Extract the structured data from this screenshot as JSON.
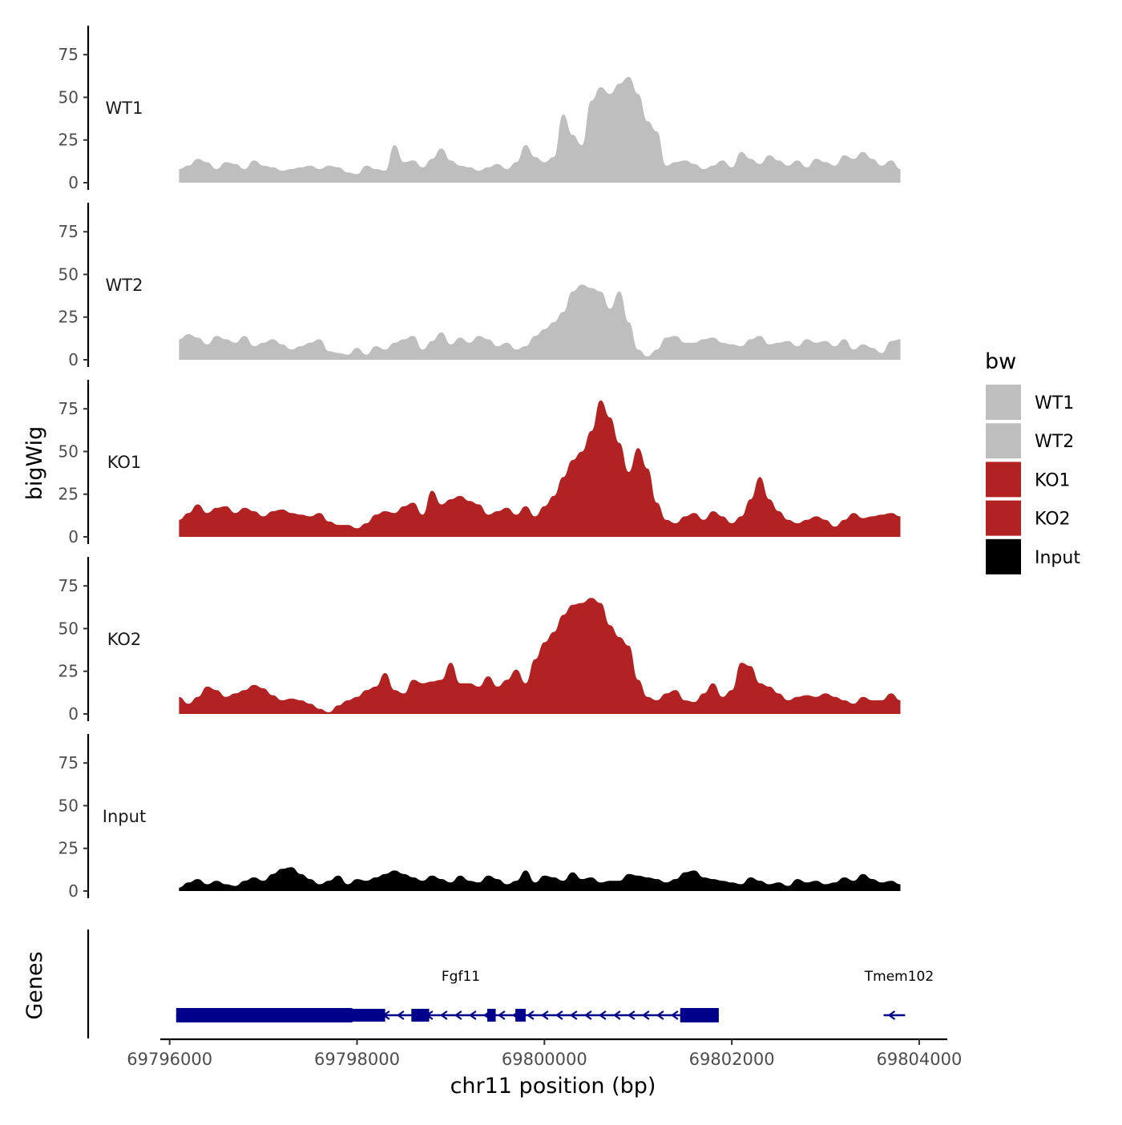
{
  "chart_data": {
    "type": "area",
    "title": "",
    "ylabel": "bigWig",
    "genes_label": "Genes",
    "xlabel": "chr11 position (bp)",
    "xlim": [
      69795900,
      69804300
    ],
    "ylim": [
      0,
      92
    ],
    "y_ticks": [
      0,
      25,
      50,
      75
    ],
    "x_ticks": [
      69796000,
      69798000,
      69800000,
      69802000,
      69804000
    ],
    "x_tick_labels": [
      "69796000",
      "69798000",
      "69800000",
      "69802000",
      "69804000"
    ],
    "legend": {
      "title": "bw",
      "entries": [
        {
          "label": "WT1",
          "color": "#bebebe"
        },
        {
          "label": "WT2",
          "color": "#bebebe"
        },
        {
          "label": "KO1",
          "color": "#b22222"
        },
        {
          "label": "KO2",
          "color": "#b22222"
        },
        {
          "label": "Input",
          "color": "#000000"
        }
      ]
    },
    "x": [
      69796100,
      69796200,
      69796300,
      69796400,
      69796500,
      69796600,
      69796700,
      69796800,
      69796900,
      69797000,
      69797100,
      69797200,
      69797300,
      69797400,
      69797500,
      69797600,
      69797700,
      69797800,
      69797900,
      69798000,
      69798100,
      69798200,
      69798300,
      69798400,
      69798500,
      69798600,
      69798700,
      69798800,
      69798900,
      69799000,
      69799100,
      69799200,
      69799300,
      69799400,
      69799500,
      69799600,
      69799700,
      69799800,
      69799900,
      69800000,
      69800100,
      69800200,
      69800300,
      69800400,
      69800500,
      69800600,
      69800700,
      69800800,
      69800900,
      69801000,
      69801100,
      69801200,
      69801300,
      69801400,
      69801500,
      69801600,
      69801700,
      69801800,
      69801900,
      69802000,
      69802100,
      69802200,
      69802300,
      69802400,
      69802500,
      69802600,
      69802700,
      69802800,
      69802900,
      69803000,
      69803100,
      69803200,
      69803300,
      69803400,
      69803500,
      69803600,
      69803700,
      69803800
    ],
    "series": [
      {
        "name": "WT1",
        "color": "#bebebe",
        "values": [
          8,
          10,
          14,
          12,
          8,
          12,
          11,
          8,
          13,
          10,
          9,
          7,
          8,
          9,
          10,
          8,
          10,
          9,
          6,
          5,
          10,
          8,
          7,
          22,
          12,
          13,
          9,
          14,
          20,
          13,
          10,
          9,
          7,
          9,
          11,
          8,
          12,
          22,
          15,
          12,
          15,
          40,
          28,
          22,
          48,
          56,
          52,
          58,
          62,
          52,
          36,
          30,
          10,
          12,
          13,
          11,
          8,
          10,
          13,
          9,
          18,
          14,
          11,
          16,
          13,
          10,
          13,
          9,
          14,
          12,
          10,
          16,
          14,
          18,
          14,
          10,
          13,
          8
        ]
      },
      {
        "name": "WT2",
        "color": "#bebebe",
        "values": [
          12,
          15,
          13,
          9,
          14,
          12,
          10,
          14,
          8,
          10,
          12,
          9,
          6,
          8,
          10,
          12,
          5,
          4,
          3,
          7,
          3,
          8,
          6,
          10,
          12,
          14,
          6,
          11,
          16,
          9,
          13,
          10,
          14,
          12,
          8,
          10,
          6,
          8,
          14,
          18,
          22,
          28,
          40,
          44,
          42,
          40,
          30,
          40,
          22,
          6,
          2,
          6,
          13,
          14,
          10,
          10,
          12,
          13,
          10,
          9,
          8,
          12,
          14,
          9,
          10,
          11,
          8,
          12,
          10,
          11,
          8,
          12,
          6,
          9,
          7,
          4,
          11,
          12
        ]
      },
      {
        "name": "KO1",
        "color": "#b22222",
        "values": [
          10,
          14,
          19,
          14,
          17,
          18,
          14,
          17,
          15,
          12,
          15,
          16,
          14,
          13,
          12,
          14,
          9,
          7,
          7,
          5,
          8,
          13,
          15,
          14,
          18,
          20,
          13,
          27,
          19,
          22,
          24,
          21,
          19,
          13,
          15,
          17,
          13,
          18,
          12,
          18,
          24,
          35,
          45,
          50,
          62,
          80,
          70,
          55,
          38,
          52,
          40,
          20,
          10,
          8,
          12,
          14,
          10,
          15,
          12,
          8,
          12,
          22,
          35,
          22,
          15,
          10,
          8,
          10,
          12,
          10,
          6,
          10,
          14,
          11,
          12,
          13,
          14,
          12
        ]
      },
      {
        "name": "KO2",
        "color": "#b22222",
        "values": [
          10,
          6,
          10,
          16,
          14,
          10,
          12,
          14,
          17,
          15,
          11,
          8,
          9,
          8,
          6,
          3,
          1,
          5,
          8,
          10,
          14,
          16,
          24,
          14,
          12,
          20,
          18,
          19,
          20,
          30,
          18,
          18,
          16,
          22,
          16,
          20,
          26,
          18,
          32,
          42,
          48,
          58,
          64,
          65,
          68,
          65,
          52,
          45,
          40,
          20,
          10,
          8,
          12,
          14,
          8,
          7,
          12,
          18,
          10,
          14,
          30,
          28,
          18,
          16,
          12,
          8,
          10,
          11,
          10,
          12,
          10,
          8,
          6,
          10,
          8,
          8,
          12,
          8
        ]
      },
      {
        "name": "Input",
        "color": "#000000",
        "values": [
          2,
          5,
          7,
          4,
          6,
          4,
          3,
          6,
          8,
          6,
          10,
          13,
          14,
          10,
          7,
          4,
          6,
          9,
          4,
          7,
          6,
          8,
          10,
          12,
          10,
          8,
          6,
          9,
          7,
          5,
          9,
          6,
          5,
          9,
          7,
          4,
          6,
          12,
          5,
          9,
          8,
          6,
          11,
          7,
          8,
          5,
          6,
          6,
          10,
          9,
          8,
          7,
          5,
          7,
          11,
          12,
          8,
          7,
          6,
          5,
          4,
          8,
          6,
          4,
          5,
          3,
          7,
          5,
          6,
          4,
          5,
          8,
          6,
          10,
          7,
          5,
          6,
          4
        ]
      }
    ],
    "genes": [
      {
        "name": "Fgf11",
        "color": "#00008b",
        "strand": "-",
        "start": 69796070,
        "end": 69801860,
        "exons": [
          [
            69796070,
            69798300
          ],
          [
            69798580,
            69798770
          ],
          [
            69799390,
            69799480
          ],
          [
            69799690,
            69799800
          ],
          [
            69801450,
            69801860
          ]
        ],
        "thick_exons": [
          [
            69796070,
            69797950
          ],
          [
            69801450,
            69801860
          ]
        ]
      },
      {
        "name": "Tmem102",
        "color": "#00008b",
        "strand": "-",
        "start": 69803620,
        "end": 69803850,
        "exons": [],
        "thick_exons": []
      }
    ]
  }
}
